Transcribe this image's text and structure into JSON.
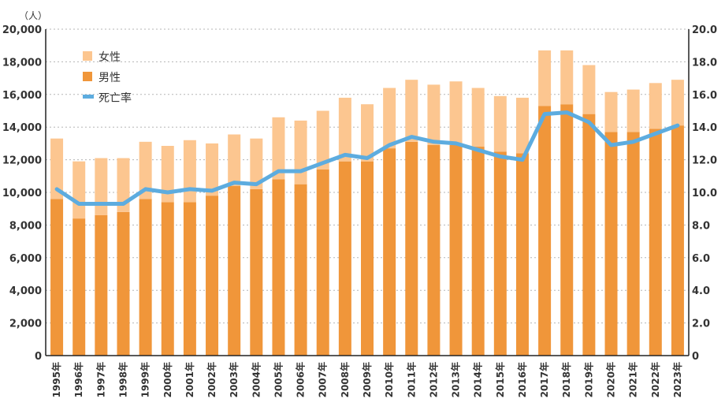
{
  "chart_data": {
    "type": "bar",
    "stacked": true,
    "categories": [
      "1995年",
      "1996年",
      "1997年",
      "1998年",
      "1999年",
      "2000年",
      "2001年",
      "2002年",
      "2003年",
      "2004年",
      "2005年",
      "2006年",
      "2007年",
      "2008年",
      "2009年",
      "2010年",
      "2011年",
      "2012年",
      "2013年",
      "2014年",
      "2015年",
      "2016年",
      "2017年",
      "2018年",
      "2019年",
      "2020年",
      "2021年",
      "2022年",
      "2023年"
    ],
    "series": [
      {
        "name": "男性",
        "kind": "bar",
        "axis": "left",
        "color": "#f0963a",
        "values": [
          9600,
          8400,
          8600,
          8800,
          9600,
          9400,
          9400,
          9800,
          10400,
          10200,
          10800,
          10500,
          11400,
          11900,
          11900,
          12700,
          13100,
          12900,
          12900,
          12800,
          12500,
          12400,
          15300,
          15400,
          14800,
          13700,
          13700,
          13900,
          14100
        ]
      },
      {
        "name": "女性",
        "kind": "bar",
        "axis": "left",
        "color": "#fcc690",
        "values": [
          3700,
          3500,
          3500,
          3300,
          3500,
          3450,
          3800,
          3200,
          3150,
          3100,
          3800,
          3900,
          3600,
          3900,
          3500,
          3700,
          3800,
          3700,
          3900,
          3600,
          3400,
          3400,
          3400,
          3300,
          3000,
          2450,
          2600,
          2800,
          2800
        ]
      },
      {
        "name": "死亡率",
        "kind": "line",
        "axis": "right",
        "color": "#5dacdf",
        "values": [
          10.2,
          9.3,
          9.3,
          9.3,
          10.2,
          10.0,
          10.2,
          10.1,
          10.6,
          10.5,
          11.3,
          11.3,
          11.8,
          12.3,
          12.1,
          12.9,
          13.4,
          13.1,
          13.0,
          12.6,
          12.2,
          12.0,
          14.8,
          14.9,
          14.3,
          12.9,
          13.1,
          13.6,
          14.1
        ]
      }
    ],
    "yaxis_left": {
      "min": 0,
      "max": 20000,
      "step": 2000,
      "tick_labels": [
        "0",
        "2,000",
        "4,000",
        "6,000",
        "8,000",
        "10,000",
        "12,000",
        "14,000",
        "16,000",
        "18,000",
        "20,000"
      ],
      "unit": "（人）"
    },
    "yaxis_right": {
      "min": 0,
      "max": 20,
      "step": 2,
      "tick_labels": [
        "0",
        "2.0",
        "4.0",
        "6.0",
        "8.0",
        "10.0",
        "12.0",
        "14.0",
        "16.0",
        "18.0",
        "20.0"
      ]
    },
    "grid": "horizontal-dotted",
    "legend_position": "top-left",
    "legend_order": [
      "女性",
      "男性",
      "死亡率"
    ]
  }
}
